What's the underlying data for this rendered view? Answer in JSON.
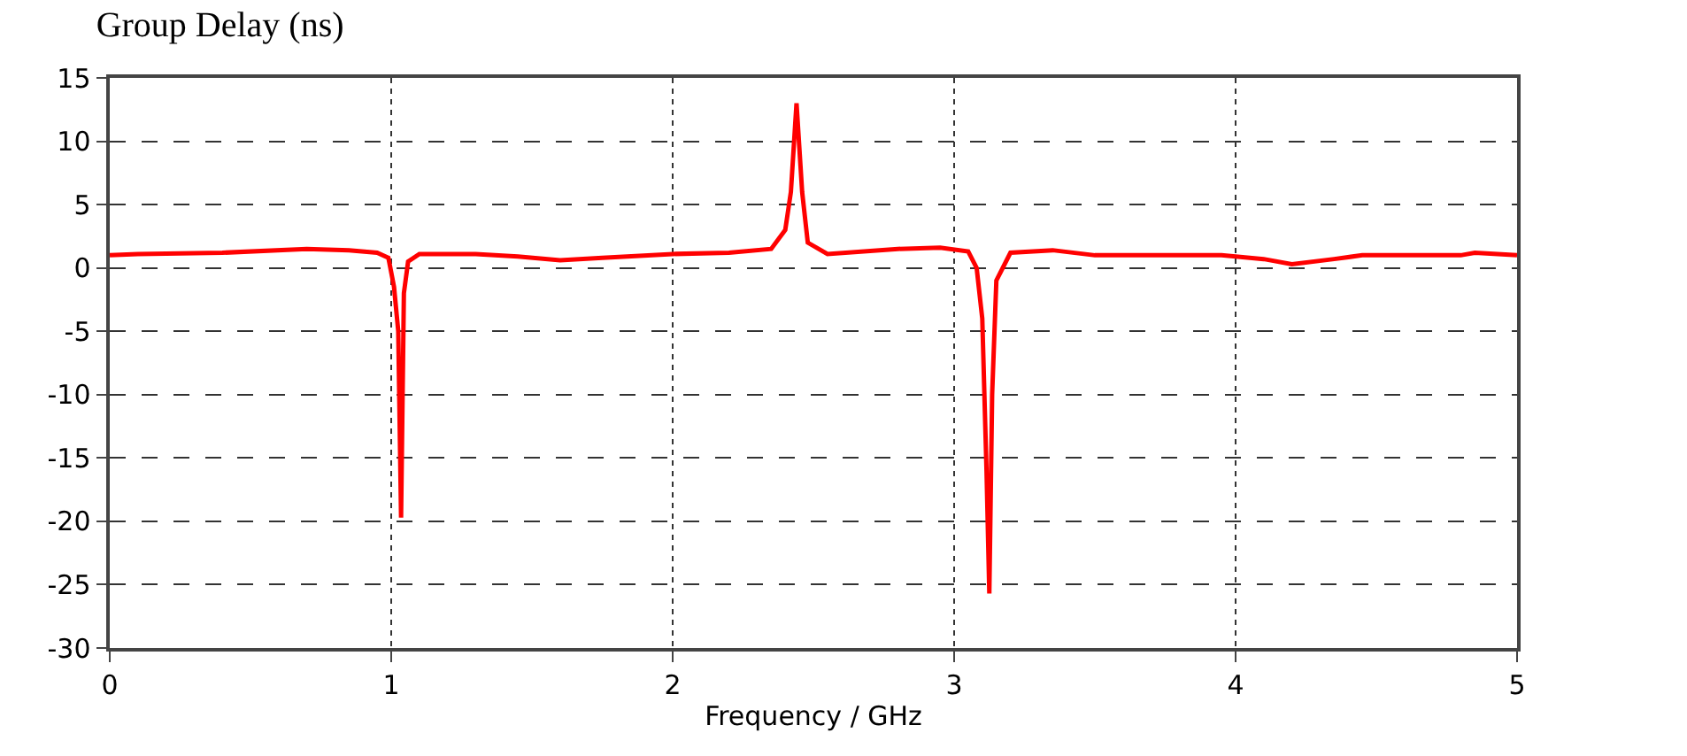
{
  "chart_data": {
    "type": "line",
    "title": "Group Delay (ns)",
    "xlabel": "Frequency / GHz",
    "x": [
      0,
      0.1,
      0.4,
      0.7,
      0.85,
      0.95,
      0.99,
      1.01,
      1.025,
      1.035,
      1.045,
      1.06,
      1.1,
      1.3,
      1.45,
      1.6,
      1.75,
      2.0,
      2.2,
      2.35,
      2.4,
      2.42,
      2.44,
      2.46,
      2.48,
      2.55,
      2.8,
      2.95,
      3.05,
      3.08,
      3.1,
      3.115,
      3.125,
      3.135,
      3.15,
      3.2,
      3.35,
      3.5,
      3.95,
      4.1,
      4.2,
      4.35,
      4.45,
      4.8,
      4.85,
      5
    ],
    "series": [
      {
        "color": "#ff0000",
        "values": [
          1.0,
          1.1,
          1.2,
          1.5,
          1.4,
          1.2,
          0.8,
          -1.5,
          -5,
          -19.7,
          -2,
          0.5,
          1.1,
          1.1,
          0.9,
          0.6,
          0.8,
          1.1,
          1.2,
          1.5,
          3,
          6,
          13,
          6,
          2,
          1.1,
          1.5,
          1.6,
          1.3,
          0,
          -4,
          -16,
          -25.7,
          -10,
          -1,
          1.2,
          1.4,
          1.0,
          1.0,
          0.7,
          0.3,
          0.7,
          1.0,
          1.0,
          1.2,
          1.0
        ]
      }
    ],
    "xlim": [
      0,
      5
    ],
    "xticks": [
      0,
      1,
      2,
      3,
      4,
      5
    ],
    "ylim": [
      -30,
      15
    ],
    "yticks": [
      -30,
      -25,
      -20,
      -15,
      -10,
      -5,
      0,
      5,
      10,
      15
    ],
    "grid": true,
    "marker": "none",
    "line_style": "solid"
  }
}
